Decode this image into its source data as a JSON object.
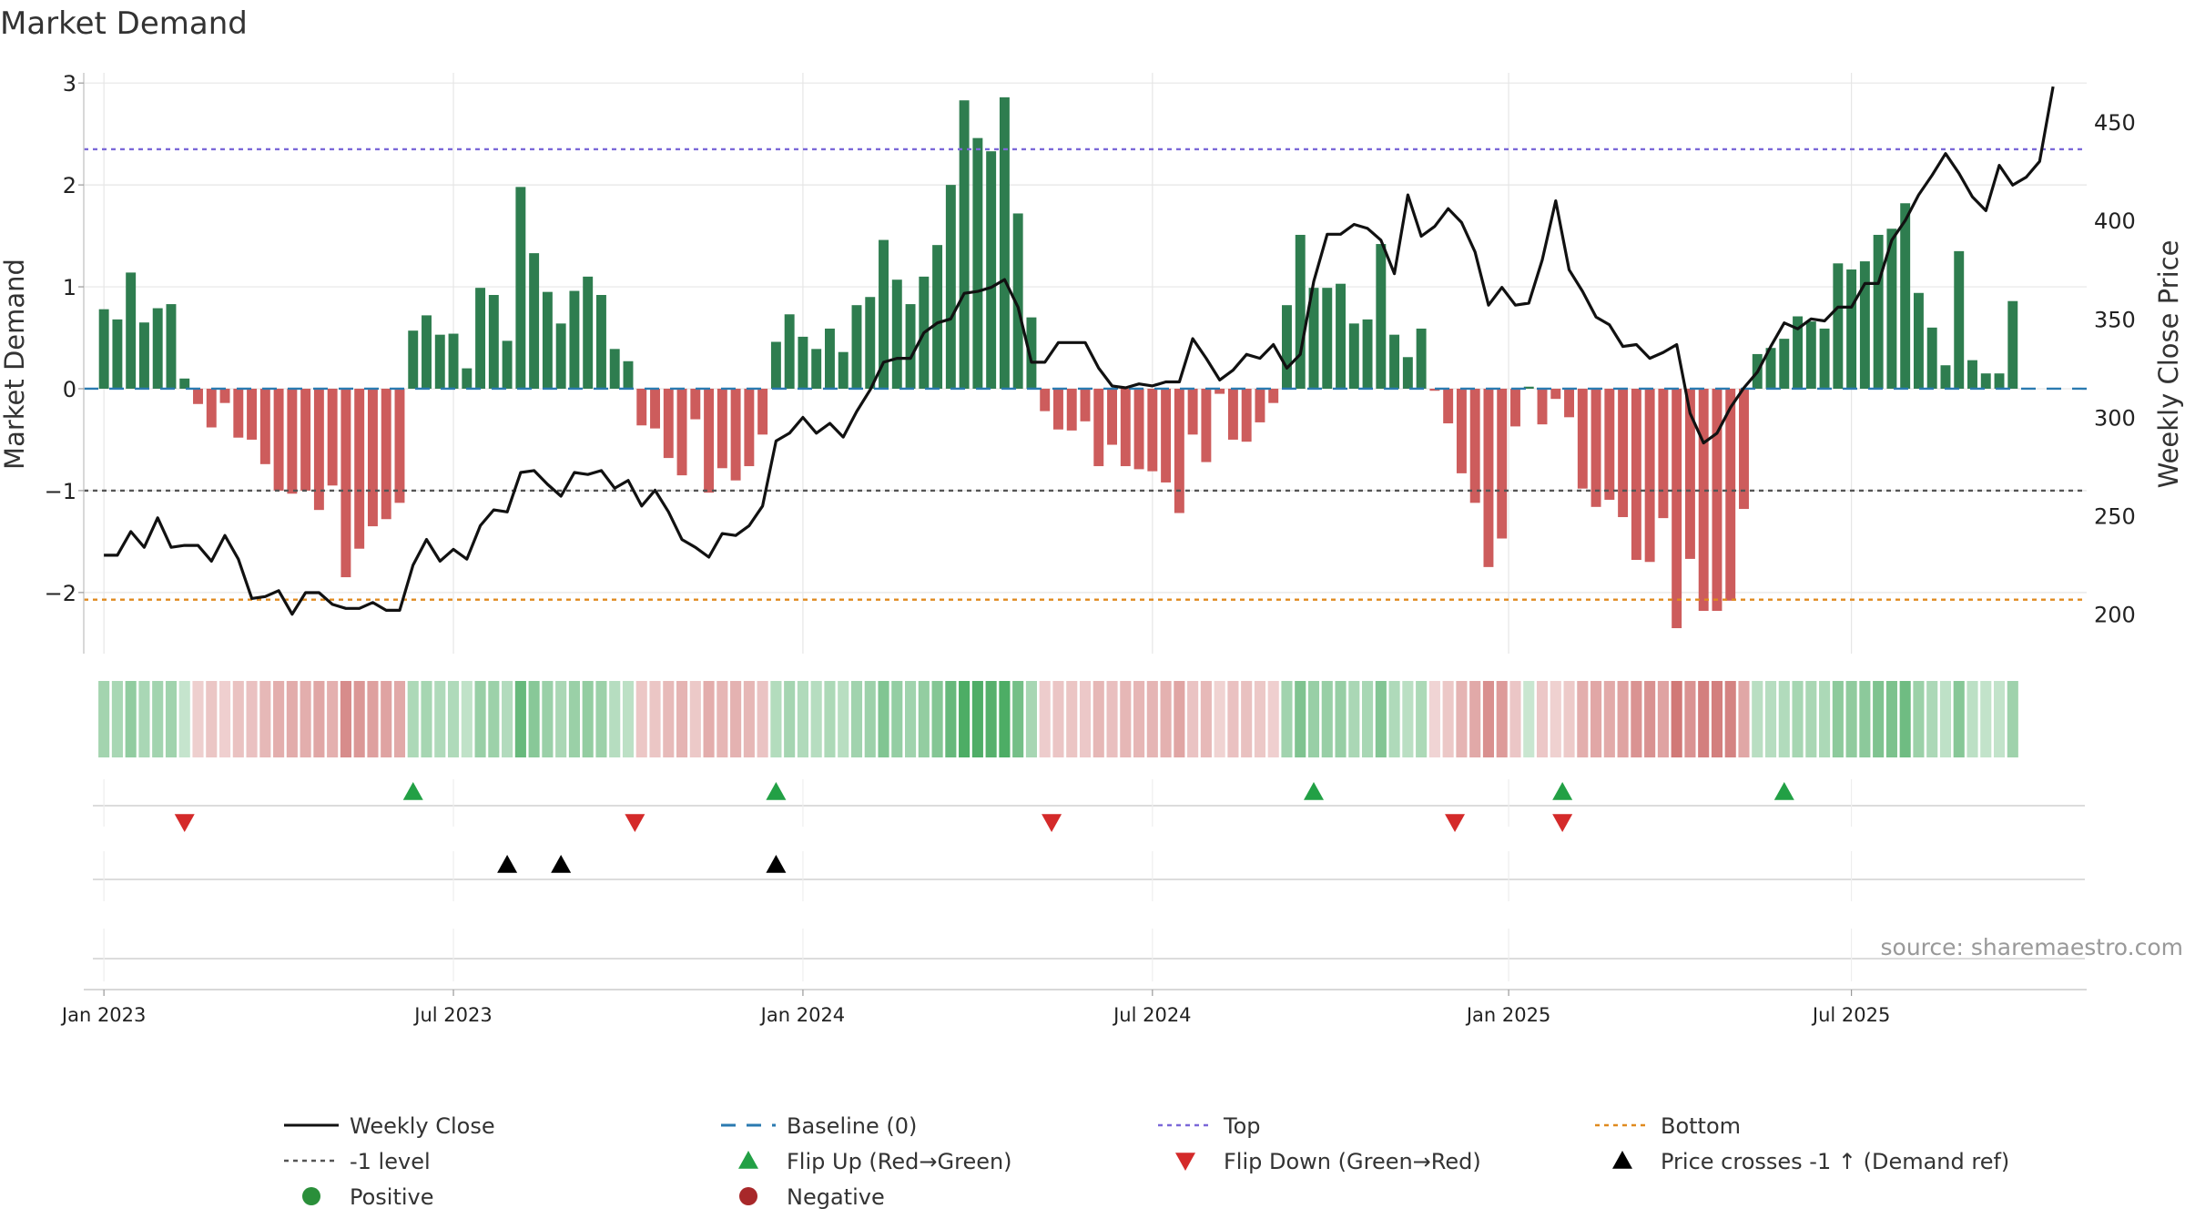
{
  "chart_data": {
    "type": "bar",
    "title": "Market Demand",
    "ylabel": "Market Demand",
    "y2label": "Weekly Close Price",
    "ylim": [
      -2.6,
      3.1
    ],
    "y2lim": [
      180,
      475
    ],
    "yticks": [
      3,
      2,
      1,
      0,
      -1,
      -2
    ],
    "y2ticks": [
      450,
      400,
      350,
      300,
      250,
      200
    ],
    "xlim": [
      -1.5,
      147.5
    ],
    "xticks": [
      {
        "label": "Jan 2023",
        "x": 0
      },
      {
        "label": "Jul 2023",
        "x": 26
      },
      {
        "label": "Jan 2024",
        "x": 52
      },
      {
        "label": "Jul 2024",
        "x": 78
      },
      {
        "label": "Jan 2025",
        "x": 104.5
      },
      {
        "label": "Jul 2025",
        "x": 130
      }
    ],
    "levels": {
      "top": 2.35,
      "bottom": -2.07,
      "minus_one": -1,
      "baseline": 0
    },
    "demand": [
      0.78,
      0.68,
      1.14,
      0.65,
      0.79,
      0.83,
      0.1,
      -0.15,
      -0.38,
      -0.14,
      -0.48,
      -0.5,
      -0.74,
      -1.0,
      -1.03,
      -1.0,
      -1.19,
      -0.95,
      -1.85,
      -1.57,
      -1.35,
      -1.28,
      -1.12,
      0.57,
      0.72,
      0.53,
      0.54,
      0.2,
      0.99,
      0.92,
      0.47,
      1.98,
      1.33,
      0.95,
      0.64,
      0.96,
      1.1,
      0.92,
      0.39,
      0.27,
      -0.36,
      -0.39,
      -0.68,
      -0.85,
      -0.3,
      -1.02,
      -0.78,
      -0.9,
      -0.76,
      -0.45,
      0.46,
      0.73,
      0.51,
      0.39,
      0.59,
      0.36,
      0.82,
      0.9,
      1.46,
      1.07,
      0.83,
      1.1,
      1.41,
      2.0,
      2.83,
      2.46,
      2.33,
      2.86,
      1.72,
      0.7,
      -0.22,
      -0.4,
      -0.41,
      -0.32,
      -0.76,
      -0.55,
      -0.76,
      -0.79,
      -0.81,
      -0.92,
      -1.22,
      -0.45,
      -0.72,
      -0.05,
      -0.5,
      -0.52,
      -0.33,
      -0.14,
      0.82,
      1.51,
      0.99,
      0.99,
      1.03,
      0.64,
      0.68,
      1.42,
      0.53,
      0.31,
      0.59,
      -0.02,
      -0.34,
      -0.83,
      -1.12,
      -1.75,
      -1.47,
      -0.37,
      0.02,
      -0.35,
      -0.1,
      -0.28,
      -0.98,
      -1.16,
      -1.09,
      -1.26,
      -1.68,
      -1.7,
      -1.27,
      -2.35,
      -1.67,
      -2.18,
      -2.18,
      -2.08,
      -1.18,
      0.34,
      0.4,
      0.49,
      0.71,
      0.66,
      0.59,
      1.23,
      1.17,
      1.25,
      1.51,
      1.57,
      1.82,
      0.94,
      0.6,
      0.23,
      1.35,
      0.28,
      0.15,
      0.15,
      0.86
    ],
    "close": [
      230,
      230,
      242,
      234,
      249,
      234,
      235,
      235,
      227,
      240,
      228,
      208,
      209,
      212,
      200,
      211,
      211,
      205,
      203,
      203,
      206,
      202,
      202,
      225,
      238,
      227,
      233,
      228,
      245,
      253,
      252,
      272,
      273,
      266,
      260,
      272,
      271,
      273,
      264,
      268,
      255,
      263,
      252,
      238,
      234,
      229,
      241,
      240,
      245,
      255,
      288,
      292,
      300,
      292,
      297,
      290,
      303,
      314,
      328,
      330,
      330,
      343,
      348,
      350,
      363,
      364,
      366,
      370,
      356,
      328,
      328,
      338,
      338,
      338,
      325,
      316,
      315,
      317,
      316,
      318,
      318,
      340,
      330,
      319,
      324,
      332,
      330,
      337,
      325,
      332,
      369,
      393,
      393,
      398,
      396,
      390,
      373,
      413,
      392,
      397,
      406,
      399,
      384,
      357,
      366,
      357,
      358,
      380,
      410,
      375,
      364,
      351,
      347,
      336,
      337,
      330,
      333,
      337,
      302,
      287,
      292,
      305,
      315,
      323,
      336,
      348,
      345,
      350,
      349,
      356,
      356,
      368,
      368,
      390,
      400,
      413,
      423,
      434,
      424,
      412,
      405,
      428,
      418,
      422,
      430,
      468
    ],
    "intensity_strip": "Demand intensity heat strip (per-week color)",
    "flip_up_weeks": [
      23,
      50,
      90,
      108.5,
      125
    ],
    "flip_down_weeks": [
      6,
      39.5,
      70.5,
      100.5,
      108.5
    ],
    "price_cross_weeks": [
      30,
      34,
      50
    ],
    "source": "source: sharemaestro.com",
    "legend": [
      {
        "label": "Weekly Close",
        "kind": "line-solid"
      },
      {
        "label": "Baseline (0)",
        "kind": "line-dash"
      },
      {
        "label": "Top",
        "kind": "line-dot-purple"
      },
      {
        "label": "Bottom",
        "kind": "line-dot-orange"
      },
      {
        "label": "-1 level",
        "kind": "line-dot-gray"
      },
      {
        "label": "Flip Up (Red→Green)",
        "kind": "tri-up-green"
      },
      {
        "label": "Flip Down (Green→Red)",
        "kind": "tri-down-red"
      },
      {
        "label": "Price crosses -1 ↑ (Demand ref)",
        "kind": "tri-up-black"
      },
      {
        "label": "Positive",
        "kind": "dot-green"
      },
      {
        "label": "Negative",
        "kind": "dot-red"
      }
    ],
    "colors": {
      "positive": "#2e7d4f",
      "negative": "#cd5c5c",
      "price": "#111111",
      "baseline": "#2a7ab0",
      "top": "#7b68d8",
      "bottom": "#e08a1e",
      "minus_one": "#555555",
      "flip_up": "#22a045",
      "flip_down": "#d42a2a",
      "cross": "#000000",
      "legend_positive": "#2a8f3a",
      "legend_negative": "#a8282a",
      "grid": "#e6e6e6"
    }
  }
}
